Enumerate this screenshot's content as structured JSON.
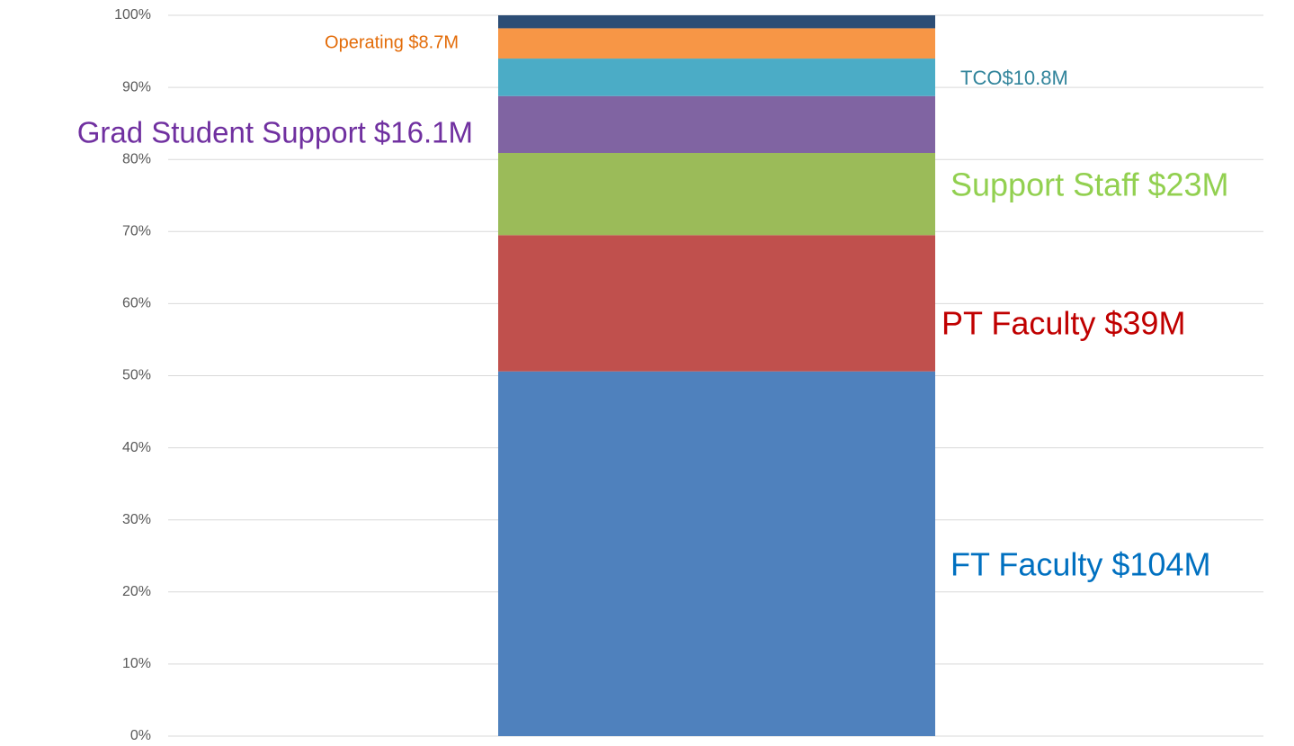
{
  "chart_data": {
    "type": "stacked_bar",
    "categories": [
      null
    ],
    "series": [
      {
        "name": "FT Faculty $104M",
        "color": "#4f81bd",
        "label_color": "#0070c0",
        "values": [
          50.6
        ]
      },
      {
        "name": "PT Faculty $39M",
        "color": "#c0504d",
        "label_color": "#c00000",
        "values": [
          18.9
        ]
      },
      {
        "name": "Support Staff $23M",
        "color": "#9bbb59",
        "label_color": "#92d050",
        "values": [
          11.4
        ]
      },
      {
        "name": "Grad Student Support $16.1M",
        "color": "#8064a2",
        "label_color": "#7030a0",
        "values": [
          7.9
        ]
      },
      {
        "name": "TCO$10.8M",
        "color": "#4bacc6",
        "label_color": "#31849b",
        "values": [
          5.2
        ]
      },
      {
        "name": "Operating $8.7M",
        "color": "#f79646",
        "label_color": "#e36c09",
        "values": [
          4.2
        ]
      },
      {
        "color": "#2c4d75",
        "values": [
          1.8
        ]
      }
    ],
    "ylim": [
      0,
      100
    ],
    "yticks": [
      {
        "value": 0,
        "label": "0%"
      },
      {
        "value": 10,
        "label": "10%"
      },
      {
        "value": 20,
        "label": "20%"
      },
      {
        "value": 30,
        "label": "30%"
      },
      {
        "value": 40,
        "label": "40%"
      },
      {
        "value": 50,
        "label": "50%"
      },
      {
        "value": 60,
        "label": "60%"
      },
      {
        "value": 70,
        "label": "70%"
      },
      {
        "value": 80,
        "label": "80%"
      },
      {
        "value": 90,
        "label": "90%"
      },
      {
        "value": 100,
        "label": "100%"
      }
    ],
    "grid": true
  }
}
